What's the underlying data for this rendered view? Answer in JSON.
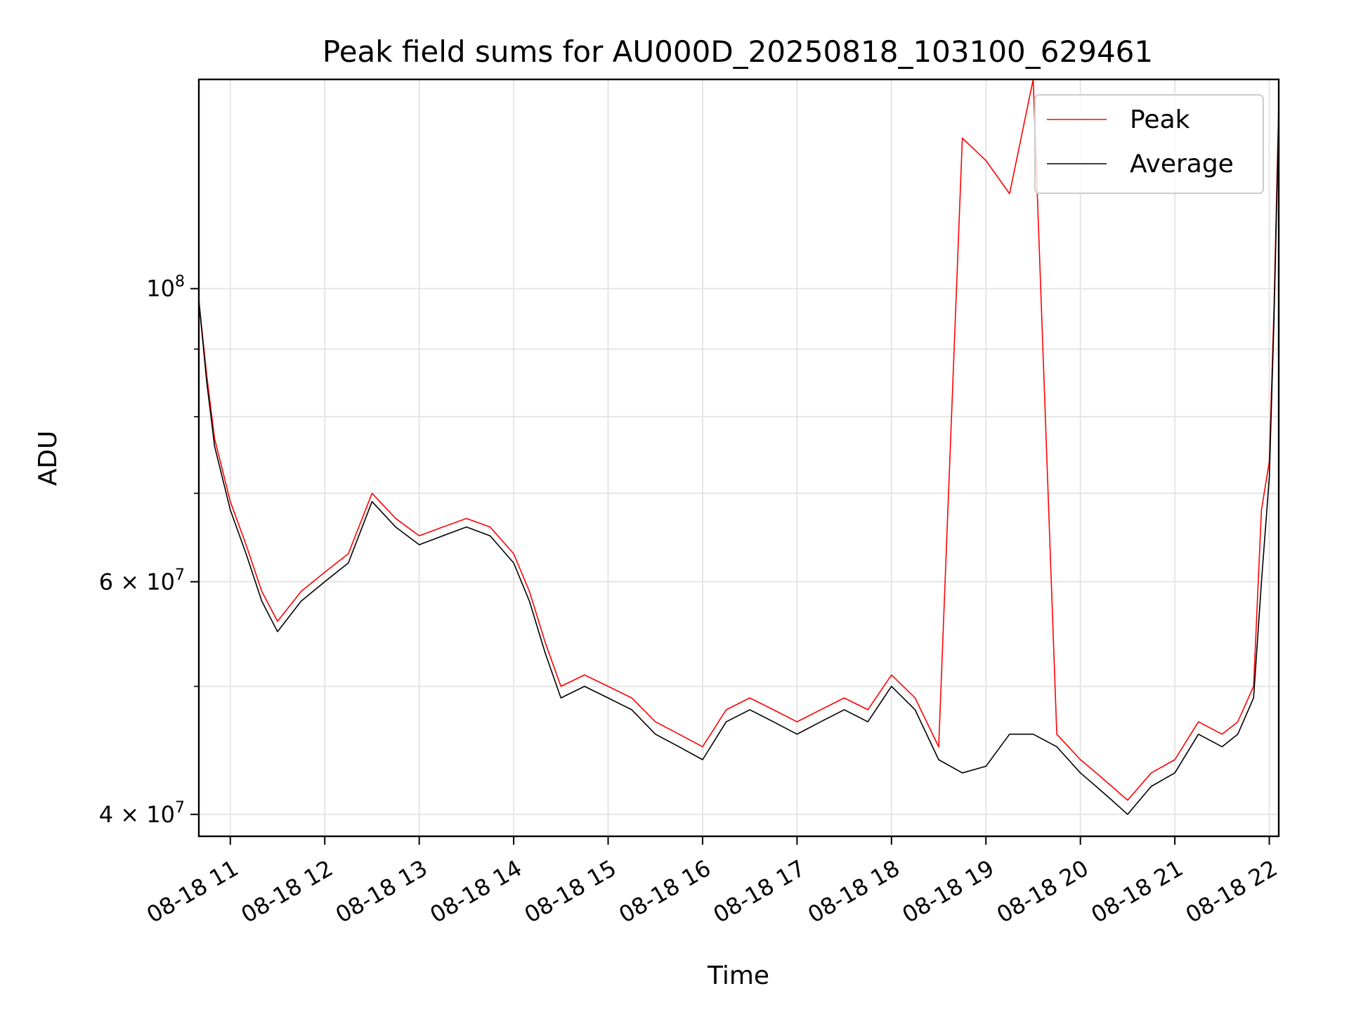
{
  "chart_data": {
    "type": "line",
    "title": "Peak field sums for AU000D_20250818_103100_629461",
    "xlabel": "Time",
    "ylabel": "ADU",
    "y_scale": "log",
    "ylim": [
      38500000,
      144000000
    ],
    "xlim": [
      "2025-08-18 10:40",
      "2025-08-18 22:06"
    ],
    "grid": true,
    "legend_position": "top-right",
    "x_ticks": [
      "08-18 11",
      "08-18 12",
      "08-18 13",
      "08-18 14",
      "08-18 15",
      "08-18 16",
      "08-18 17",
      "08-18 18",
      "08-18 19",
      "08-18 20",
      "08-18 21",
      "08-18 22"
    ],
    "y_ticks": [
      {
        "value": 40000000,
        "mantissa": "4",
        "exp": "7"
      },
      {
        "value": 60000000,
        "mantissa": "6",
        "exp": "7"
      },
      {
        "value": 100000000,
        "mantissa": "",
        "exp": "8"
      }
    ],
    "x": [
      "2025-08-18 10:40",
      "2025-08-18 10:45",
      "2025-08-18 10:50",
      "2025-08-18 11:00",
      "2025-08-18 11:10",
      "2025-08-18 11:20",
      "2025-08-18 11:30",
      "2025-08-18 11:45",
      "2025-08-18 12:00",
      "2025-08-18 12:15",
      "2025-08-18 12:30",
      "2025-08-18 12:45",
      "2025-08-18 13:00",
      "2025-08-18 13:15",
      "2025-08-18 13:30",
      "2025-08-18 13:45",
      "2025-08-18 14:00",
      "2025-08-18 14:10",
      "2025-08-18 14:20",
      "2025-08-18 14:30",
      "2025-08-18 14:45",
      "2025-08-18 15:00",
      "2025-08-18 15:15",
      "2025-08-18 15:30",
      "2025-08-18 15:45",
      "2025-08-18 16:00",
      "2025-08-18 16:15",
      "2025-08-18 16:30",
      "2025-08-18 16:45",
      "2025-08-18 17:00",
      "2025-08-18 17:15",
      "2025-08-18 17:30",
      "2025-08-18 17:45",
      "2025-08-18 18:00",
      "2025-08-18 18:15",
      "2025-08-18 18:30",
      "2025-08-18 18:45",
      "2025-08-18 19:00",
      "2025-08-18 19:15",
      "2025-08-18 19:30",
      "2025-08-18 19:45",
      "2025-08-18 20:00",
      "2025-08-18 20:10",
      "2025-08-18 20:20",
      "2025-08-18 20:30",
      "2025-08-18 20:45",
      "2025-08-18 21:00",
      "2025-08-18 21:15",
      "2025-08-18 21:30",
      "2025-08-18 21:40",
      "2025-08-18 21:50",
      "2025-08-18 21:55",
      "2025-08-18 22:00",
      "2025-08-18 22:03",
      "2025-08-18 22:06"
    ],
    "series": [
      {
        "name": "Average",
        "color": "#000000",
        "values": [
          98000000,
          85000000,
          76000000,
          68000000,
          63000000,
          58000000,
          55000000,
          58000000,
          60000000,
          62000000,
          69000000,
          66000000,
          64000000,
          65000000,
          66000000,
          65000000,
          62000000,
          58000000,
          53000000,
          49000000,
          50000000,
          49000000,
          48000000,
          46000000,
          45000000,
          44000000,
          47000000,
          48000000,
          47000000,
          46000000,
          47000000,
          48000000,
          47000000,
          50000000,
          48000000,
          44000000,
          43000000,
          43500000,
          46000000,
          46000000,
          45000000,
          43000000,
          42000000,
          41000000,
          40000000,
          42000000,
          43000000,
          46000000,
          45000000,
          46000000,
          49000000,
          60000000,
          72000000,
          95000000,
          135000000
        ]
      },
      {
        "name": "Peak",
        "color": "#ff0000",
        "values": [
          98000000,
          86000000,
          77000000,
          69000000,
          64000000,
          59000000,
          56000000,
          59000000,
          61000000,
          63000000,
          70000000,
          67000000,
          65000000,
          66000000,
          67000000,
          66000000,
          63000000,
          59000000,
          54000000,
          50000000,
          51000000,
          50000000,
          49000000,
          47000000,
          46000000,
          45000000,
          48000000,
          49000000,
          48000000,
          47000000,
          48000000,
          49000000,
          48000000,
          51000000,
          49000000,
          45000000,
          130000000,
          125000000,
          118000000,
          144000000,
          46000000,
          44000000,
          43000000,
          42000000,
          41000000,
          43000000,
          44000000,
          47000000,
          46000000,
          47000000,
          50000000,
          68000000,
          74000000,
          97000000,
          138000000
        ]
      }
    ]
  }
}
